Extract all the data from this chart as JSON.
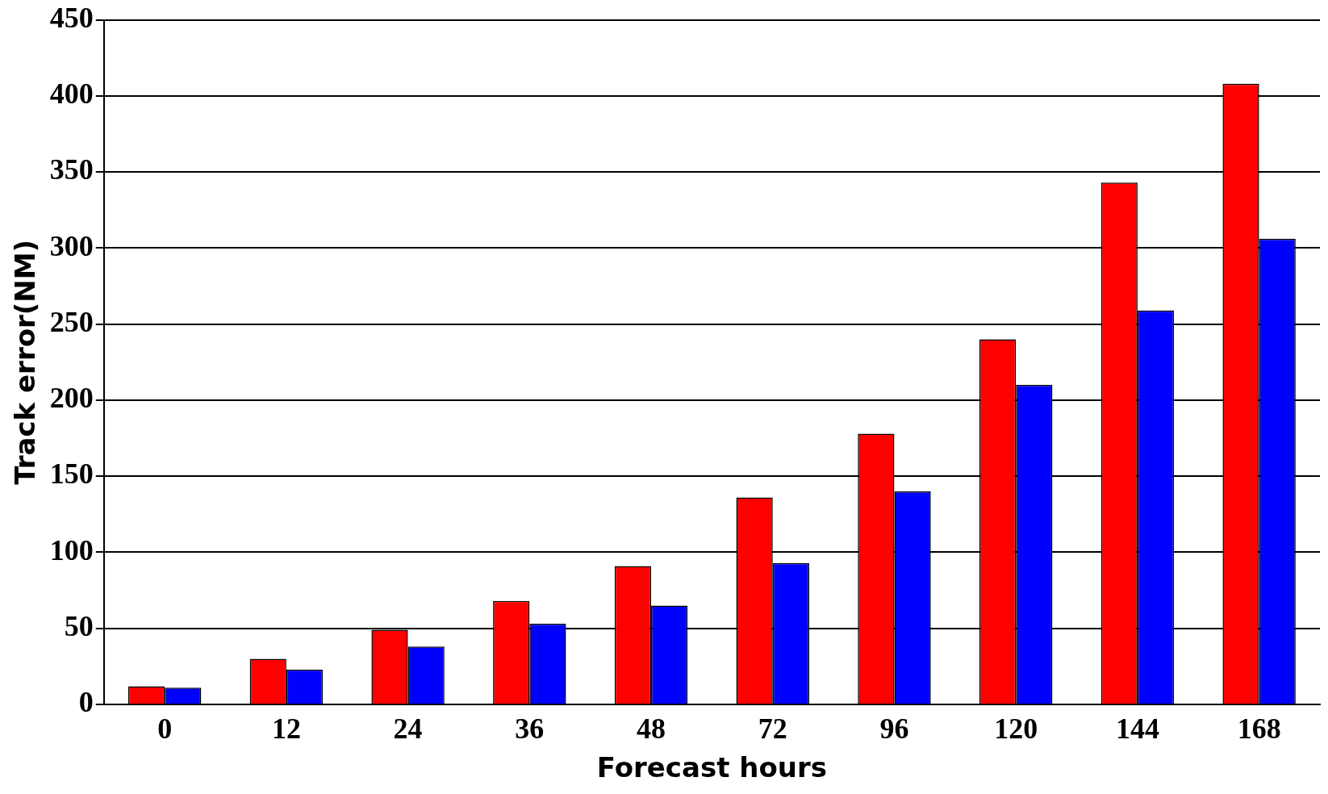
{
  "chart_data": {
    "type": "bar",
    "xlabel": "Forecast hours",
    "ylabel": "Track error(NM)",
    "categories": [
      "0",
      "12",
      "24",
      "36",
      "48",
      "72",
      "96",
      "120",
      "144",
      "168"
    ],
    "series": [
      {
        "color": "#ff0000",
        "values": [
          12,
          30,
          49,
          68,
          91,
          136,
          178,
          240,
          343,
          408
        ]
      },
      {
        "color": "#0000ff",
        "values": [
          11,
          23,
          38,
          53,
          65,
          93,
          140,
          210,
          259,
          306
        ]
      }
    ],
    "ylim": [
      0,
      450
    ],
    "yticks": [
      0,
      50,
      100,
      150,
      200,
      250,
      300,
      350,
      400,
      450
    ],
    "grid": "y",
    "legend": false
  }
}
